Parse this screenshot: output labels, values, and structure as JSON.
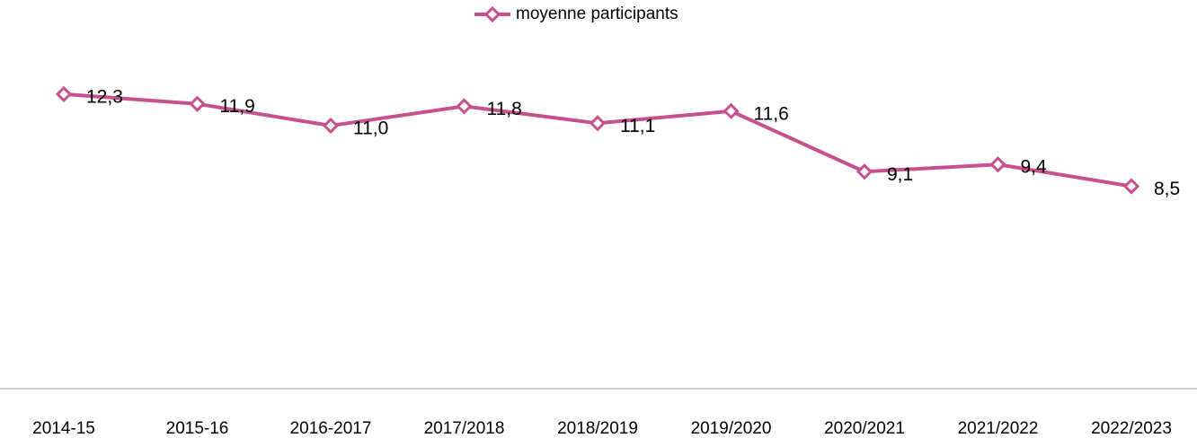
{
  "chart_data": {
    "type": "line",
    "categories": [
      "2014-15",
      "2015-16",
      "2016-2017",
      "2017/2018",
      "2018/2019",
      "2019/2020",
      "2020/2021",
      "2021/2022",
      "2022/2023"
    ],
    "series": [
      {
        "name": "moyenne participants",
        "color": "#c7508e",
        "values": [
          12.3,
          11.9,
          11.0,
          11.8,
          11.1,
          11.6,
          9.1,
          9.4,
          8.5
        ],
        "value_labels": [
          "12,3",
          "11,9",
          "11,0",
          "11,8",
          "11,1",
          "11,6",
          "9,1",
          "9,4",
          "8,5"
        ]
      }
    ],
    "ylim": [
      0,
      16
    ],
    "legend": "top"
  }
}
